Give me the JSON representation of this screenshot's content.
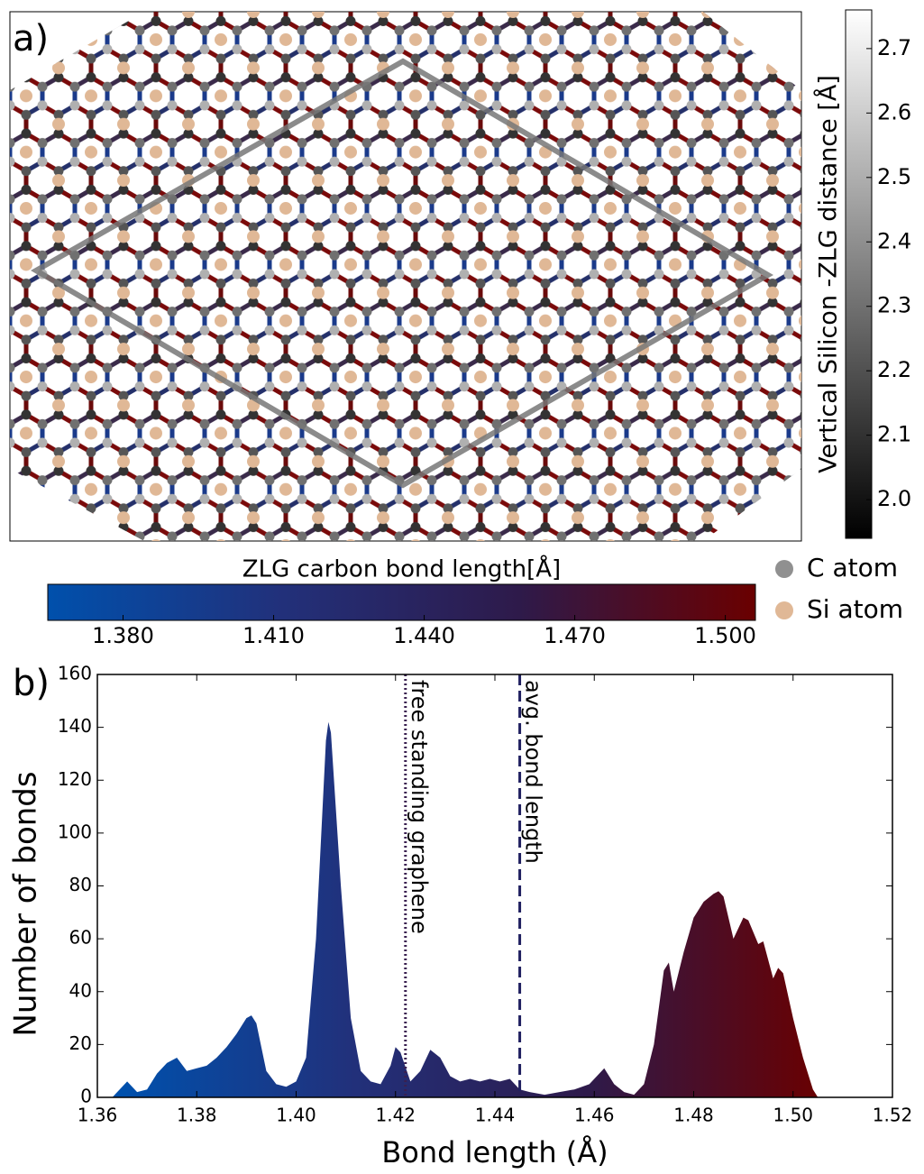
{
  "chart_data": [
    {
      "type": "lattice",
      "panel_label": "a)",
      "colorbar_vertical": {
        "label": "Vertical Silicon -ZLG distance [Å]",
        "clim": [
          1.94,
          2.76
        ],
        "colormap": [
          "#000000",
          "#ffffff"
        ],
        "ticks": [
          {
            "value": 2,
            "label": "2.0"
          },
          2.1,
          2.2,
          2.3,
          2.4,
          2.5,
          2.6,
          2.7
        ]
      },
      "colorbar_horizontal": {
        "label": "ZLG carbon bond length[Å]",
        "clim": [
          1.365,
          1.506
        ],
        "colormap": [
          "#0050ac",
          "#22307a",
          "#2e1a4a",
          "#6a0000"
        ],
        "ticks": [
          {
            "value": 1.38,
            "label": "1.380"
          },
          {
            "value": 1.41,
            "label": "1.410"
          },
          {
            "value": 1.44,
            "label": "1.440"
          },
          {
            "value": 1.47,
            "label": "1.470"
          },
          {
            "value": 1.5,
            "label": "1.500"
          }
        ]
      },
      "legend": [
        {
          "name": "C atom",
          "color": "#909090"
        },
        {
          "name": "Si atom",
          "color": "#e0b896"
        }
      ]
    },
    {
      "type": "area",
      "panel_label": "b)",
      "x_label": "Bond length (Å)",
      "y_label": "Number of bonds",
      "xlim": [
        1.36,
        1.52
      ],
      "ylim": [
        0,
        160
      ],
      "xticks": [
        1.36,
        1.38,
        {
          "value": 1.4,
          "label": "1.40"
        },
        1.42,
        1.44,
        1.46,
        1.48,
        {
          "value": 1.5,
          "label": "1.50"
        },
        1.52
      ],
      "yticks": [
        0,
        20,
        40,
        60,
        80,
        100,
        120,
        140,
        160
      ],
      "x": [
        1.363,
        1.365,
        1.366,
        1.368,
        1.37,
        1.372,
        1.374,
        1.376,
        1.378,
        1.38,
        1.382,
        1.384,
        1.386,
        1.388,
        1.39,
        1.391,
        1.392,
        1.394,
        1.396,
        1.398,
        1.4,
        1.402,
        1.404,
        1.406,
        1.4065,
        1.407,
        1.409,
        1.411,
        1.413,
        1.415,
        1.417,
        1.419,
        1.42,
        1.421,
        1.423,
        1.425,
        1.427,
        1.429,
        1.431,
        1.433,
        1.435,
        1.437,
        1.439,
        1.441,
        1.443,
        1.445,
        1.447,
        1.45,
        1.453,
        1.456,
        1.459,
        1.462,
        1.464,
        1.466,
        1.468,
        1.47,
        1.472,
        1.474,
        1.475,
        1.476,
        1.478,
        1.48,
        1.482,
        1.484,
        1.485,
        1.486,
        1.488,
        1.49,
        1.491,
        1.493,
        1.494,
        1.496,
        1.497,
        1.498,
        1.5,
        1.502,
        1.504,
        1.505
      ],
      "values": [
        0,
        4,
        6,
        2,
        3,
        9,
        13,
        15,
        10,
        11,
        12,
        15,
        19,
        24,
        30,
        31,
        28,
        10,
        5,
        4,
        6,
        15,
        60,
        135,
        142,
        138,
        80,
        30,
        10,
        6,
        5,
        12,
        19,
        17,
        6,
        10,
        18,
        15,
        8,
        6,
        7,
        6,
        7,
        6,
        7,
        3,
        2,
        1,
        2,
        3,
        5,
        11,
        5,
        2,
        1,
        5,
        20,
        48,
        51,
        40,
        55,
        68,
        74,
        77,
        78,
        76,
        60,
        68,
        67,
        58,
        59,
        45,
        49,
        47,
        30,
        15,
        3,
        0
      ],
      "vlines": [
        {
          "x": 1.422,
          "label": "free standing graphene",
          "color": "#3a2050",
          "style": "dotted"
        },
        {
          "x": 1.445,
          "label": "avg. bond length",
          "color": "#202060",
          "style": "dashed"
        }
      ]
    }
  ]
}
